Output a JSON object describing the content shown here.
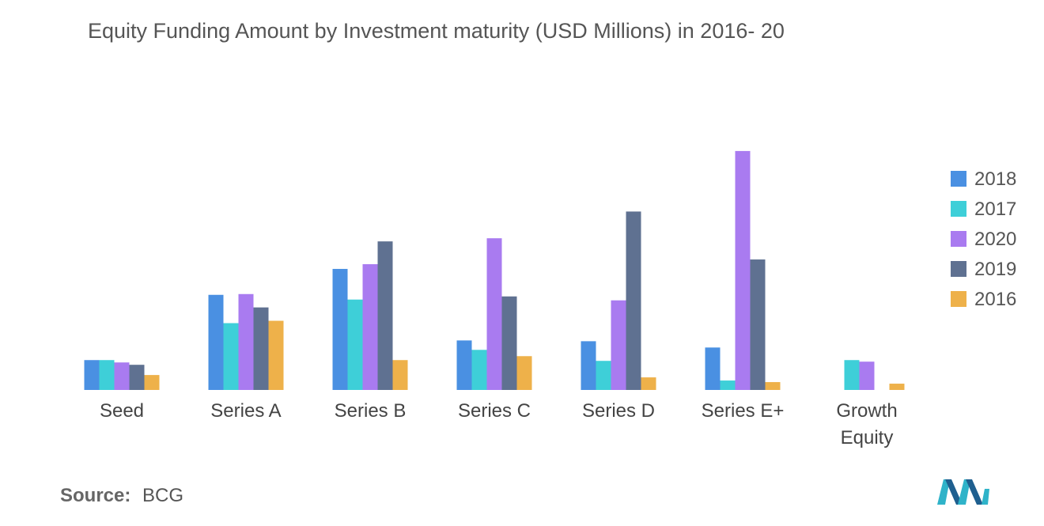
{
  "title": "Equity Funding Amount by Investment maturity (USD Millions) in 2016- 20",
  "source": {
    "label": "Source:",
    "value": "BCG"
  },
  "logo_icon": "mordor-intelligence-logo-icon",
  "colors": {
    "2018": "#4a90e2",
    "2017": "#3ecfd8",
    "2020": "#a97bf0",
    "2019": "#5f7191",
    "2016": "#eeb14a"
  },
  "chart_data": {
    "type": "bar",
    "title": "Equity Funding Amount by Investment maturity (USD Millions) in 2016- 20",
    "xlabel": "",
    "ylabel": "",
    "categories": [
      [
        "Seed"
      ],
      [
        "Series A"
      ],
      [
        "Series B"
      ],
      [
        "Series C"
      ],
      [
        "Series D"
      ],
      [
        "Series E+"
      ],
      [
        "Growth",
        "Equity"
      ]
    ],
    "series": [
      {
        "name": "2018",
        "color": "#4a90e2",
        "values": [
          38,
          121,
          154,
          63,
          62,
          54,
          0
        ]
      },
      {
        "name": "2017",
        "color": "#3ecfd8",
        "values": [
          38,
          85,
          115,
          51,
          37,
          12,
          38
        ]
      },
      {
        "name": "2020",
        "color": "#a97bf0",
        "values": [
          35,
          122,
          160,
          193,
          114,
          304,
          36
        ]
      },
      {
        "name": "2019",
        "color": "#5f7191",
        "values": [
          32,
          105,
          189,
          119,
          227,
          166,
          0
        ]
      },
      {
        "name": "2016",
        "color": "#eeb14a",
        "values": [
          19,
          88,
          38,
          43,
          16,
          10,
          8
        ]
      }
    ],
    "ylim": [
      0,
      320
    ],
    "grid": false,
    "axis_ticks_shown": false,
    "legend": {
      "position": "right",
      "order": [
        "2018",
        "2017",
        "2020",
        "2019",
        "2016"
      ]
    }
  }
}
